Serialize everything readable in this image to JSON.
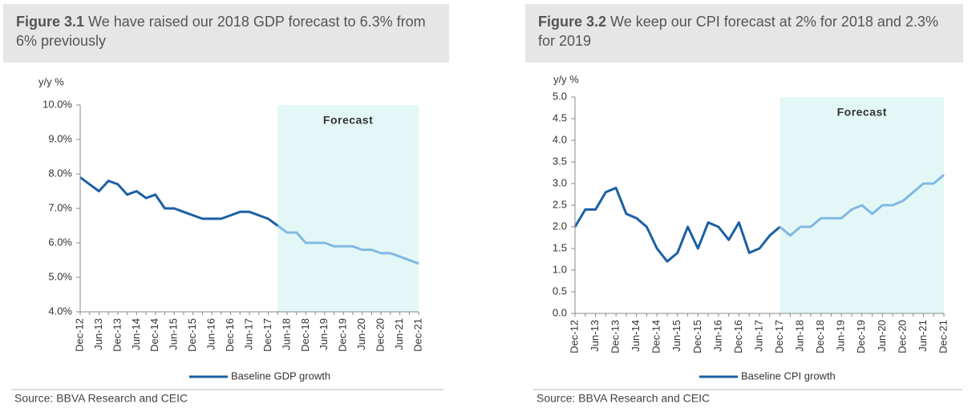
{
  "chart_data": [
    {
      "type": "line",
      "figure": "Figure 3.1",
      "title": "We have raised our 2018 GDP forecast to 6.3% from 6% previously",
      "y_label": "y/y %",
      "annotation": "Forecast",
      "shade_color": "#e4f7f7",
      "categories": [
        "Dec-12",
        null,
        "Jun-13",
        null,
        "Dec-13",
        null,
        "Jun-14",
        null,
        "Dec-14",
        null,
        "Jun-15",
        null,
        "Dec-15",
        null,
        "Jun-16",
        null,
        "Dec-16",
        null,
        "Jun-17",
        null,
        "Dec-17",
        null,
        "Jun-18",
        null,
        "Dec-18",
        null,
        "Jun-19",
        null,
        "Dec-19",
        null,
        "Jun-20",
        null,
        "Dec-20",
        null,
        "Jun-21",
        null,
        "Dec-21"
      ],
      "series": [
        {
          "name": "Baseline GDP growth",
          "color": "#1b5fa5",
          "values": [
            7.9,
            7.7,
            7.5,
            7.8,
            7.7,
            7.4,
            7.5,
            7.3,
            7.4,
            7.0,
            7.0,
            6.9,
            6.8,
            6.7,
            6.7,
            6.7,
            6.8,
            6.9,
            6.9,
            6.8,
            6.7,
            6.5,
            null,
            null,
            null,
            null,
            null,
            null,
            null,
            null,
            null,
            null,
            null,
            null,
            null,
            null,
            null
          ]
        },
        {
          "color": "#80b8e2",
          "values": [
            null,
            null,
            null,
            null,
            null,
            null,
            null,
            null,
            null,
            null,
            null,
            null,
            null,
            null,
            null,
            null,
            null,
            null,
            null,
            null,
            null,
            6.5,
            6.3,
            6.3,
            6.0,
            6.0,
            6.0,
            5.9,
            5.9,
            5.9,
            5.8,
            5.8,
            5.7,
            5.7,
            5.6,
            5.5,
            5.4
          ]
        }
      ],
      "ylim": [
        4,
        10
      ],
      "yticks": [
        {
          "value": 4,
          "label": "4.0%"
        },
        {
          "value": 5,
          "label": "5.0%"
        },
        {
          "value": 6,
          "label": "6.0%"
        },
        {
          "value": 7,
          "label": "7.0%"
        },
        {
          "value": 8,
          "label": "8.0%"
        },
        {
          "value": 9,
          "label": "9.0%"
        },
        {
          "value": 10,
          "label": "10.0%"
        }
      ],
      "source": "Source: BBVA Research and CEIC"
    },
    {
      "type": "line",
      "figure": "Figure 3.2",
      "title": "We keep our CPI forecast at 2% for 2018 and 2.3% for 2019",
      "y_label": "y/y %",
      "annotation": "Forecast",
      "shade_color": "#e4f7f7",
      "categories": [
        "Dec-12",
        null,
        "Jun-13",
        null,
        "Dec-13",
        null,
        "Jun-14",
        null,
        "Dec-14",
        null,
        "Jun-15",
        null,
        "Dec-15",
        null,
        "Jun-16",
        null,
        "Dec-16",
        null,
        "Jun-17",
        null,
        "Dec-17",
        null,
        "Jun-18",
        null,
        "Dec-18",
        null,
        "Jun-19",
        null,
        "Dec-19",
        null,
        "Jun-20",
        null,
        "Dec-20",
        null,
        "Jun-21",
        null,
        "Dec-21"
      ],
      "series": [
        {
          "name": "Baseline CPI growth",
          "color": "#1b5fa5",
          "values": [
            2.0,
            2.4,
            2.4,
            2.8,
            2.9,
            2.3,
            2.2,
            2.0,
            1.5,
            1.2,
            1.4,
            2.0,
            1.5,
            2.1,
            2.0,
            1.7,
            2.1,
            1.4,
            1.5,
            1.8,
            2.0,
            null,
            null,
            null,
            null,
            null,
            null,
            null,
            null,
            null,
            null,
            null,
            null,
            null,
            null,
            null,
            null
          ]
        },
        {
          "color": "#80b8e2",
          "values": [
            null,
            null,
            null,
            null,
            null,
            null,
            null,
            null,
            null,
            null,
            null,
            null,
            null,
            null,
            null,
            null,
            null,
            null,
            null,
            null,
            2.0,
            1.8,
            2.0,
            2.0,
            2.2,
            2.2,
            2.2,
            2.4,
            2.5,
            2.3,
            2.5,
            2.5,
            2.6,
            2.8,
            3.0,
            3.0,
            3.2
          ]
        }
      ],
      "ylim": [
        0,
        5
      ],
      "yticks": [
        {
          "value": 0,
          "label": "0.0"
        },
        {
          "value": 0.5,
          "label": "0.5"
        },
        {
          "value": 1,
          "label": "1.0"
        },
        {
          "value": 1.5,
          "label": "1.5"
        },
        {
          "value": 2,
          "label": "2.0"
        },
        {
          "value": 2.5,
          "label": "2.5"
        },
        {
          "value": 3,
          "label": "3.0"
        },
        {
          "value": 3.5,
          "label": "3.5"
        },
        {
          "value": 4,
          "label": "4.0"
        },
        {
          "value": 4.5,
          "label": "4.5"
        },
        {
          "value": 5,
          "label": "5.0"
        }
      ],
      "source": "Source: BBVA Research and CEIC"
    }
  ]
}
